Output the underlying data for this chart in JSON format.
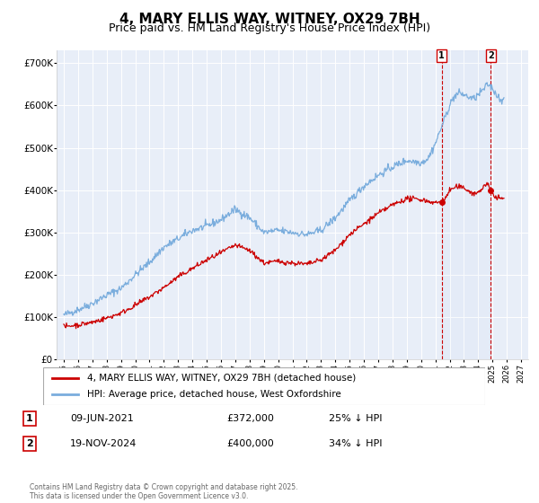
{
  "title": "4, MARY ELLIS WAY, WITNEY, OX29 7BH",
  "subtitle": "Price paid vs. HM Land Registry's House Price Index (HPI)",
  "background_color": "#e8eef8",
  "plot_bg_color": "#e8eef8",
  "ylabel_ticks": [
    "£0",
    "£100K",
    "£200K",
    "£300K",
    "£400K",
    "£500K",
    "£600K",
    "£700K"
  ],
  "ytick_values": [
    0,
    100000,
    200000,
    300000,
    400000,
    500000,
    600000,
    700000
  ],
  "ylim": [
    0,
    730000
  ],
  "xlim_start": 1994.5,
  "xlim_end": 2027.5,
  "xticks": [
    1995,
    1996,
    1997,
    1998,
    1999,
    2000,
    2001,
    2002,
    2003,
    2004,
    2005,
    2006,
    2007,
    2008,
    2009,
    2010,
    2011,
    2012,
    2013,
    2014,
    2015,
    2016,
    2017,
    2018,
    2019,
    2020,
    2021,
    2022,
    2023,
    2024,
    2025,
    2026,
    2027
  ],
  "red_line_color": "#cc0000",
  "blue_line_color": "#7aaddd",
  "marker1_date": 2021.44,
  "marker2_date": 2024.89,
  "marker1_price": 372000,
  "marker2_price": 400000,
  "vline_color": "#cc0000",
  "legend_label_red": "4, MARY ELLIS WAY, WITNEY, OX29 7BH (detached house)",
  "legend_label_blue": "HPI: Average price, detached house, West Oxfordshire",
  "table_row1": [
    "1",
    "09-JUN-2021",
    "£372,000",
    "25% ↓ HPI"
  ],
  "table_row2": [
    "2",
    "19-NOV-2024",
    "£400,000",
    "34% ↓ HPI"
  ],
  "footer_text": "Contains HM Land Registry data © Crown copyright and database right 2025.\nThis data is licensed under the Open Government Licence v3.0.",
  "title_fontsize": 11,
  "subtitle_fontsize": 9,
  "tick_fontsize": 7.5
}
